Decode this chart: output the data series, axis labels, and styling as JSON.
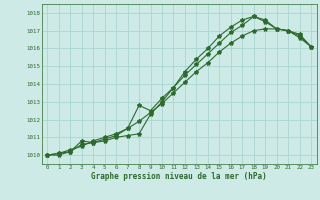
{
  "title": "Graphe pression niveau de la mer (hPa)",
  "bg_color": "#cdeae7",
  "grid_color": "#a8d5d0",
  "line_color": "#2d6a2d",
  "xlim": [
    -0.5,
    23.5
  ],
  "ylim": [
    1009.5,
    1018.5
  ],
  "xticks": [
    0,
    1,
    2,
    3,
    4,
    5,
    6,
    7,
    8,
    9,
    10,
    11,
    12,
    13,
    14,
    15,
    16,
    17,
    18,
    19,
    20,
    21,
    22,
    23
  ],
  "yticks": [
    1010,
    1011,
    1012,
    1013,
    1014,
    1015,
    1016,
    1017,
    1018
  ],
  "line1_x": [
    0,
    1,
    2,
    3,
    4,
    5,
    6,
    7,
    8,
    9,
    10,
    11,
    12,
    13,
    14,
    15,
    16,
    17,
    18,
    19,
    20,
    21,
    22,
    23
  ],
  "line1_y": [
    1010.0,
    1010.1,
    1010.3,
    1010.5,
    1010.8,
    1011.0,
    1011.2,
    1011.5,
    1011.9,
    1012.4,
    1012.9,
    1013.5,
    1014.1,
    1014.7,
    1015.2,
    1015.8,
    1016.3,
    1016.7,
    1017.0,
    1017.1,
    1017.1,
    1017.0,
    1016.8,
    1016.1
  ],
  "line2_x": [
    0,
    1,
    2,
    3,
    4,
    5,
    6,
    7,
    8,
    9,
    10,
    11,
    12,
    13,
    14,
    15,
    16,
    17,
    18,
    19,
    20,
    21,
    22,
    23
  ],
  "line2_y": [
    1010.0,
    1010.1,
    1010.2,
    1010.6,
    1010.7,
    1010.8,
    1011.0,
    1011.1,
    1011.2,
    1012.3,
    1013.0,
    1013.8,
    1014.7,
    1015.4,
    1016.0,
    1016.7,
    1017.2,
    1017.6,
    1017.8,
    1017.6,
    1017.1,
    1017.0,
    1016.7,
    1016.1
  ],
  "line3_x": [
    0,
    1,
    2,
    3,
    4,
    5,
    6,
    7,
    8,
    9,
    10,
    11,
    12,
    13,
    14,
    15,
    16,
    17,
    18,
    19,
    20,
    21,
    22,
    23
  ],
  "line3_y": [
    1010.0,
    1010.0,
    1010.2,
    1010.8,
    1010.7,
    1010.9,
    1011.1,
    1011.5,
    1012.8,
    1012.5,
    1013.2,
    1013.8,
    1014.5,
    1015.1,
    1015.7,
    1016.3,
    1016.9,
    1017.3,
    1017.8,
    1017.5,
    1017.1,
    1017.0,
    1016.6,
    1016.1
  ]
}
